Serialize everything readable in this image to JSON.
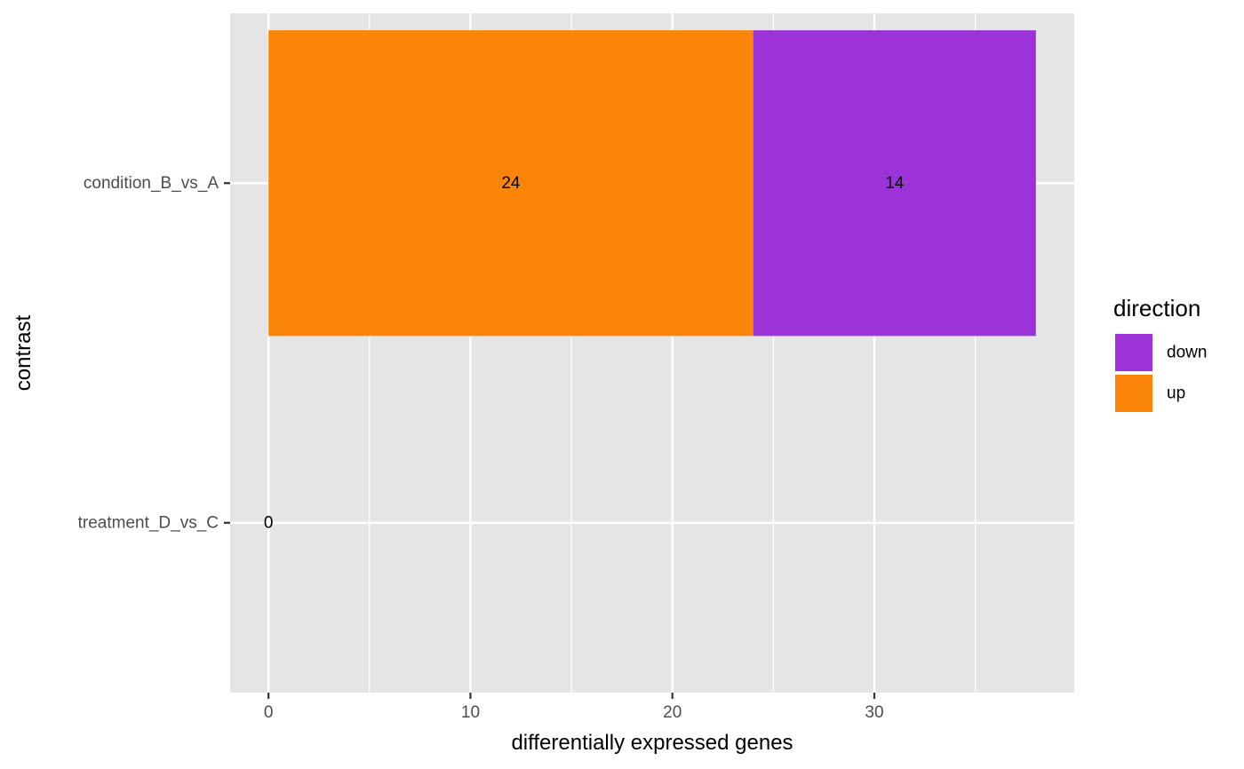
{
  "chart_data": {
    "type": "bar",
    "orientation": "horizontal",
    "stacked": true,
    "categories": [
      "condition_B_vs_A",
      "treatment_D_vs_C"
    ],
    "series": [
      {
        "name": "up",
        "values": [
          24,
          0
        ],
        "color": "#FB8509"
      },
      {
        "name": "down",
        "values": [
          14,
          0
        ],
        "color": "#9C33D8"
      }
    ],
    "data_labels": [
      {
        "category": "condition_B_vs_A",
        "series": "up",
        "text": "24"
      },
      {
        "category": "condition_B_vs_A",
        "series": "down",
        "text": "14"
      },
      {
        "category": "treatment_D_vs_C",
        "series": "up",
        "text": "0"
      }
    ],
    "title": "",
    "xlabel": "differentially expressed genes",
    "ylabel": "contrast",
    "xlim": [
      -1.9,
      39.9
    ],
    "xticks": [
      0,
      10,
      20,
      30
    ],
    "grid": true,
    "legend": {
      "title": "direction",
      "position": "right",
      "entries": [
        {
          "label": "down",
          "color": "#9C33D8"
        },
        {
          "label": "up",
          "color": "#FB8509"
        }
      ]
    }
  }
}
